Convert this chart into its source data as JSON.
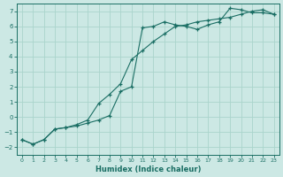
{
  "xlabel": "Humidex (Indice chaleur)",
  "ylabel": "",
  "background_color": "#cce8e4",
  "grid_color": "#aad4cc",
  "line_color": "#1a6e64",
  "xlim": [
    -0.5,
    23.5
  ],
  "ylim": [
    -2.5,
    7.5
  ],
  "xticks": [
    0,
    1,
    2,
    3,
    4,
    5,
    6,
    7,
    8,
    9,
    10,
    11,
    12,
    13,
    14,
    15,
    16,
    17,
    18,
    19,
    20,
    21,
    22,
    23
  ],
  "yticks": [
    -2,
    -1,
    0,
    1,
    2,
    3,
    4,
    5,
    6,
    7
  ],
  "line1_x": [
    0,
    1,
    2,
    3,
    4,
    5,
    6,
    7,
    8,
    9,
    10,
    11,
    12,
    13,
    14,
    15,
    16,
    17,
    18,
    19,
    20,
    21,
    22,
    23
  ],
  "line1_y": [
    -1.5,
    -1.8,
    -1.5,
    -0.8,
    -0.7,
    -0.6,
    -0.4,
    -0.2,
    0.1,
    1.7,
    2.0,
    5.9,
    6.0,
    6.3,
    6.1,
    6.0,
    5.8,
    6.1,
    6.3,
    7.2,
    7.1,
    6.9,
    6.9,
    6.8
  ],
  "line2_x": [
    0,
    1,
    2,
    3,
    4,
    5,
    6,
    7,
    8,
    9,
    10,
    11,
    12,
    13,
    14,
    15,
    16,
    17,
    18,
    19,
    20,
    21,
    22,
    23
  ],
  "line2_y": [
    -1.5,
    -1.8,
    -1.5,
    -0.8,
    -0.7,
    -0.5,
    -0.2,
    0.9,
    1.5,
    2.2,
    3.8,
    4.4,
    5.0,
    5.5,
    6.0,
    6.1,
    6.3,
    6.4,
    6.5,
    6.6,
    6.8,
    7.0,
    7.1,
    6.8
  ]
}
